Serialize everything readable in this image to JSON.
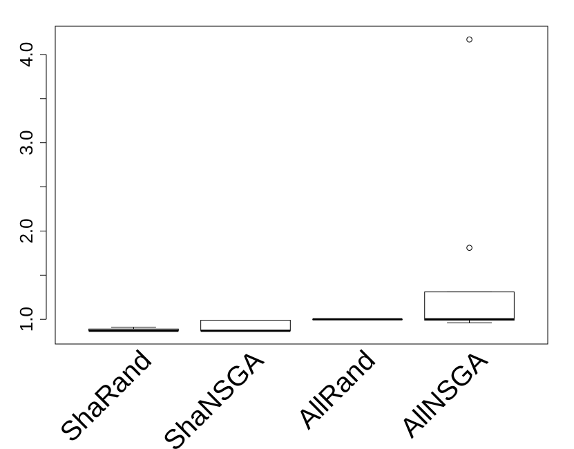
{
  "chart_data": {
    "type": "boxplot",
    "title": "",
    "xlabel": "",
    "ylabel": "",
    "ylim": [
      0.72,
      4.32
    ],
    "y_ticks": [
      1.0,
      1.5,
      2.0,
      2.5,
      3.0,
      3.5,
      4.0
    ],
    "y_tick_labels": [
      "1.0",
      "",
      "2.0",
      "",
      "3.0",
      "",
      "4.0"
    ],
    "grid": false,
    "legend": "none",
    "categories": [
      "ShaRand",
      "ShaNSGA",
      "AllRand",
      "AllNSGA"
    ],
    "boxes": [
      {
        "category": "ShaRand",
        "whisker_low": 0.87,
        "q1": 0.87,
        "median": 0.87,
        "q3": 0.89,
        "whisker_high": 0.91,
        "outliers": []
      },
      {
        "category": "ShaNSGA",
        "whisker_low": 0.87,
        "q1": 0.87,
        "median": 0.87,
        "q3": 0.99,
        "whisker_high": 0.99,
        "outliers": []
      },
      {
        "category": "AllRand",
        "whisker_low": 1.0,
        "q1": 1.0,
        "median": 1.0,
        "q3": 1.0,
        "whisker_high": 1.0,
        "outliers": []
      },
      {
        "category": "AllNSGA",
        "whisker_low": 0.96,
        "q1": 0.99,
        "median": 1.0,
        "q3": 1.31,
        "whisker_high": 1.31,
        "outliers": [
          1.81,
          4.17
        ]
      }
    ],
    "colors": {
      "stroke": "#000000",
      "box_fill": "#ffffff",
      "background": "#ffffff"
    }
  }
}
